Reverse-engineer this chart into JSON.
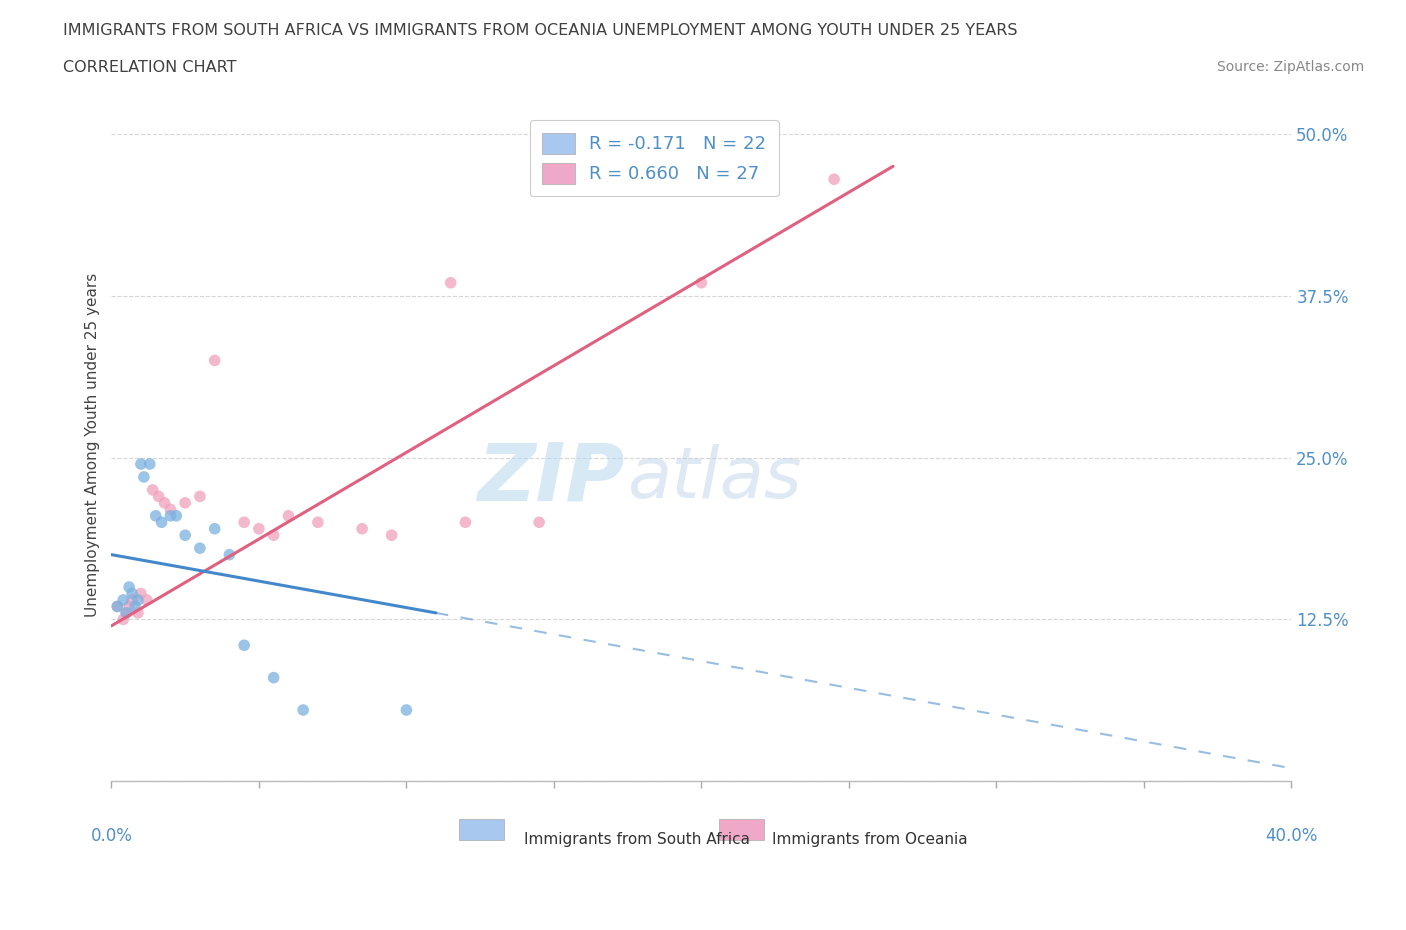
{
  "title_line1": "IMMIGRANTS FROM SOUTH AFRICA VS IMMIGRANTS FROM OCEANIA UNEMPLOYMENT AMONG YOUTH UNDER 25 YEARS",
  "title_line2": "CORRELATION CHART",
  "source_text": "Source: ZipAtlas.com",
  "ylabel_label": "Unemployment Among Youth under 25 years",
  "legend1_label": "R = -0.171   N = 22",
  "legend2_label": "R = 0.660   N = 27",
  "legend1_color": "#a8c8f0",
  "legend2_color": "#f0a8c8",
  "scatter_blue": {
    "x": [
      0.2,
      0.4,
      0.5,
      0.6,
      0.7,
      0.8,
      0.9,
      1.0,
      1.1,
      1.3,
      1.5,
      1.7,
      2.0,
      2.2,
      2.5,
      3.0,
      3.5,
      4.0,
      4.5,
      5.5,
      6.5,
      10.0
    ],
    "y": [
      13.5,
      14.0,
      13.0,
      15.0,
      14.5,
      13.5,
      14.0,
      24.5,
      23.5,
      24.5,
      20.5,
      20.0,
      20.5,
      20.5,
      19.0,
      18.0,
      19.5,
      17.5,
      10.5,
      8.0,
      5.5,
      5.5
    ]
  },
  "scatter_pink": {
    "x": [
      0.2,
      0.4,
      0.5,
      0.6,
      0.7,
      0.9,
      1.0,
      1.2,
      1.4,
      1.6,
      1.8,
      2.0,
      2.5,
      3.0,
      3.5,
      4.5,
      5.0,
      5.5,
      6.0,
      7.0,
      8.5,
      9.5,
      11.5,
      12.0,
      14.5,
      20.0,
      24.5
    ],
    "y": [
      13.5,
      12.5,
      13.0,
      13.5,
      14.0,
      13.0,
      14.5,
      14.0,
      22.5,
      22.0,
      21.5,
      21.0,
      21.5,
      22.0,
      32.5,
      20.0,
      19.5,
      19.0,
      20.5,
      20.0,
      19.5,
      19.0,
      38.5,
      20.0,
      20.0,
      38.5,
      46.5
    ]
  },
  "blue_line_solid": {
    "x0": 0.0,
    "y0": 17.5,
    "x1": 11.0,
    "y1": 13.0
  },
  "blue_line_dash": {
    "x0": 11.0,
    "y0": 13.0,
    "x1": 40.0,
    "y1": 1.0
  },
  "pink_line": {
    "x0": 0.0,
    "y0": 12.0,
    "x1": 26.5,
    "y1": 47.5
  },
  "xmin": 0.0,
  "xmax": 40.0,
  "ymin": 0.0,
  "ymax": 52.0,
  "x_ticks_minor": [
    0.0,
    5.0,
    10.0,
    15.0,
    20.0,
    25.0,
    30.0,
    35.0,
    40.0
  ],
  "y_ticks": [
    0.0,
    12.5,
    25.0,
    37.5,
    50.0
  ],
  "grid_color": "#cccccc",
  "watermark_text1": "ZIP",
  "watermark_text2": "atlas",
  "scatter_blue_color": "#7ab0e0",
  "scatter_pink_color": "#f0a0bc",
  "line_blue_color": "#4488cc",
  "line_pink_color": "#e06080",
  "title_color": "#404040",
  "tick_color": "#5090c8",
  "bg_color": "#ffffff"
}
